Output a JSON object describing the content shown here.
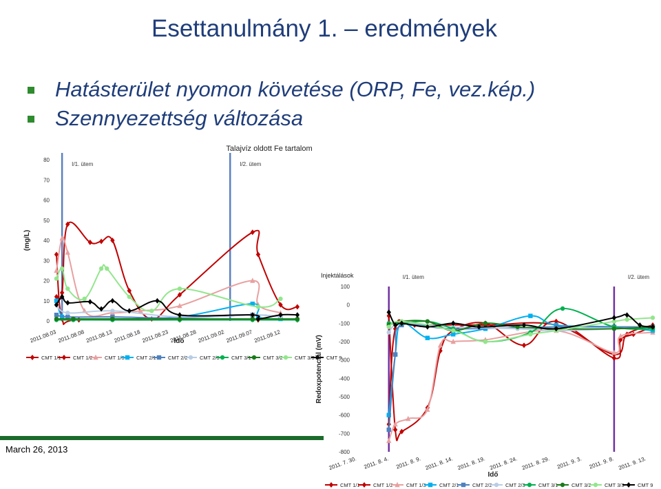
{
  "slide": {
    "title": "Esettanulmány 1. – eredmények",
    "bullets": [
      "Hatásterület nyomon követése (ORP, Fe, vez.kép.)",
      "Szennyezettség változása"
    ],
    "date": "March 26, 2013",
    "accent_color": "#1b6b2c",
    "title_color": "#1f3d7a"
  },
  "chart_data": [
    {
      "type": "line",
      "title": "Talajvíz oldott Fe tartalom",
      "xlabel": "Idő",
      "ylabel": "(mg/L)",
      "ylim": [
        0,
        80
      ],
      "yticks": [
        0,
        10,
        20,
        30,
        40,
        50,
        60,
        70,
        80
      ],
      "xlim": [
        "2011.08.03",
        "2011.09.16"
      ],
      "xticks": [
        "2011.08.03",
        "2011.08.08",
        "2011.08.13",
        "2011.08.18",
        "2011.08.23",
        "2011.08.28",
        "2011.09.02",
        "2011.09.07",
        "2011.09.12"
      ],
      "phase_labels": [
        {
          "label": "I/1. ütem",
          "x": "2011.08.04"
        },
        {
          "label": "I/2. ütem",
          "x": "2011.09.03"
        }
      ],
      "legend_position": "bottom",
      "series": [
        {
          "name": "CMT 1/1",
          "color": "#c00000",
          "marker": "diamond",
          "points": [
            [
              "2011.08.03",
              12
            ],
            [
              "2011.08.04",
              14
            ],
            [
              "2011.08.05",
              48
            ],
            [
              "2011.08.09",
              39
            ],
            [
              "2011.08.11",
              39.5
            ],
            [
              "2011.08.13",
              40
            ],
            [
              "2011.08.16",
              15
            ],
            [
              "2011.08.20",
              1
            ],
            [
              "2011.08.25",
              13
            ],
            [
              "2011.09.07",
              44
            ],
            [
              "2011.09.08",
              33
            ],
            [
              "2011.09.12",
              8
            ],
            [
              "2011.09.15",
              7
            ]
          ]
        },
        {
          "name": "CMT 1/2",
          "color": "#c00000",
          "marker": "diamond",
          "points": [
            [
              "2011.08.03",
              33
            ],
            [
              "2011.08.04",
              1
            ],
            [
              "2011.08.07",
              0.5
            ],
            [
              "2011.08.25",
              0.5
            ],
            [
              "2011.09.08",
              0.5
            ],
            [
              "2011.09.15",
              0.5
            ]
          ]
        },
        {
          "name": "CMT 1/3",
          "color": "#e8a0a0",
          "marker": "triangle",
          "points": [
            [
              "2011.08.03",
              25
            ],
            [
              "2011.08.04",
              41
            ],
            [
              "2011.08.05",
              34
            ],
            [
              "2011.08.08",
              5
            ],
            [
              "2011.08.13",
              4
            ],
            [
              "2011.08.18",
              5
            ],
            [
              "2011.08.25",
              7.5
            ],
            [
              "2011.09.07",
              20
            ],
            [
              "2011.09.08",
              8
            ],
            [
              "2011.09.12",
              4
            ]
          ]
        },
        {
          "name": "CMT 2/1",
          "color": "#00b0f0",
          "marker": "square",
          "points": [
            [
              "2011.08.03",
              10
            ],
            [
              "2011.08.04",
              2
            ],
            [
              "2011.08.06",
              1
            ],
            [
              "2011.08.13",
              1
            ],
            [
              "2011.08.25",
              2
            ],
            [
              "2011.09.07",
              8.5
            ],
            [
              "2011.09.08",
              2
            ],
            [
              "2011.09.12",
              1
            ]
          ]
        },
        {
          "name": "CMT 2/2",
          "color": "#4f81bd",
          "marker": "square",
          "points": [
            [
              "2011.08.03",
              3
            ],
            [
              "2011.08.05",
              2
            ],
            [
              "2011.08.13",
              2
            ],
            [
              "2011.08.25",
              1.5
            ],
            [
              "2011.09.07",
              3
            ],
            [
              "2011.09.12",
              2
            ]
          ]
        },
        {
          "name": "CMT 2/3",
          "color": "#b9cde5",
          "marker": "circle",
          "points": [
            [
              "2011.08.03",
              8
            ],
            [
              "2011.08.05",
              4
            ],
            [
              "2011.08.13",
              5
            ],
            [
              "2011.08.25",
              2
            ],
            [
              "2011.09.07",
              3
            ],
            [
              "2011.09.12",
              2
            ]
          ]
        },
        {
          "name": "CMT 3/1",
          "color": "#00b050",
          "marker": "circle",
          "points": [
            [
              "2011.08.03",
              0.5
            ],
            [
              "2011.08.06",
              0.5
            ],
            [
              "2011.08.13",
              0.5
            ],
            [
              "2011.08.25",
              0.5
            ],
            [
              "2011.09.07",
              0.5
            ],
            [
              "2011.09.15",
              0.5
            ]
          ]
        },
        {
          "name": "CMT 3/2",
          "color": "#1a7a1a",
          "marker": "circle",
          "points": [
            [
              "2011.08.03",
              1
            ],
            [
              "2011.08.06",
              1
            ],
            [
              "2011.08.13",
              1
            ],
            [
              "2011.08.25",
              1
            ],
            [
              "2011.09.07",
              1
            ],
            [
              "2011.09.15",
              1
            ]
          ]
        },
        {
          "name": "CMT 3/3",
          "color": "#92e68c",
          "marker": "circle",
          "points": [
            [
              "2011.08.03",
              21
            ],
            [
              "2011.08.04",
              26
            ],
            [
              "2011.08.05",
              16
            ],
            [
              "2011.08.08",
              11
            ],
            [
              "2011.08.11",
              26
            ],
            [
              "2011.08.12",
              26
            ],
            [
              "2011.08.16",
              12
            ],
            [
              "2011.08.20",
              5
            ],
            [
              "2011.08.25",
              16
            ],
            [
              "2011.09.08",
              7
            ],
            [
              "2011.09.12",
              11
            ]
          ]
        },
        {
          "name": "CMT 9",
          "color": "#000000",
          "marker": "diamond",
          "points": [
            [
              "2011.08.03",
              8
            ],
            [
              "2011.08.04",
              12
            ],
            [
              "2011.08.05",
              9
            ],
            [
              "2011.08.09",
              9.5
            ],
            [
              "2011.08.11",
              6
            ],
            [
              "2011.08.13",
              10
            ],
            [
              "2011.08.16",
              5
            ],
            [
              "2011.08.21",
              10
            ],
            [
              "2011.08.25",
              3
            ],
            [
              "2011.09.07",
              3
            ],
            [
              "2011.09.08",
              1
            ],
            [
              "2011.09.12",
              3
            ],
            [
              "2011.09.15",
              3
            ]
          ]
        }
      ]
    },
    {
      "type": "line",
      "title": "Injektálások",
      "xlabel": "Idő",
      "ylabel": "Redoxpotenciál (mV)",
      "ylim": [
        -800,
        100
      ],
      "yticks": [
        100,
        0,
        -100,
        -200,
        -300,
        -400,
        -500,
        -600,
        -700,
        -800
      ],
      "xlim": [
        "2011. 7. 30.",
        "2011. 9. 14."
      ],
      "xticks": [
        "2011. 7. 30.",
        "2011. 8. 4.",
        "2011. 8. 9.",
        "2011. 8. 14.",
        "2011. 8. 19.",
        "2011. 8. 24.",
        "2011. 8. 29.",
        "2011. 9. 3.",
        "2011. 9. 8.",
        "2011. 9. 13."
      ],
      "phase_labels": [
        {
          "label": "I/1. ütem",
          "x": "2011. 8. 4."
        },
        {
          "label": "I/2. ütem",
          "x": "2011. 9. 8."
        }
      ],
      "legend_position": "bottom",
      "series": [
        {
          "name": "CMT 1/1",
          "color": "#c00000",
          "marker": "diamond",
          "points": [
            [
              "2011. 8. 4.",
              -60
            ],
            [
              "2011. 8. 5.",
              -680
            ],
            [
              "2011. 8. 6.",
              -690
            ],
            [
              "2011. 8. 10.",
              -560
            ],
            [
              "2011. 8. 12.",
              -250
            ],
            [
              "2011. 8. 14.",
              -140
            ],
            [
              "2011. 8. 19.",
              -100
            ],
            [
              "2011. 8. 25.",
              -220
            ],
            [
              "2011. 8. 30.",
              -90
            ],
            [
              "2011. 9. 8.",
              -290
            ],
            [
              "2011. 9. 9.",
              -190
            ],
            [
              "2011. 9. 11.",
              -160
            ],
            [
              "2011. 9. 14.",
              -120
            ]
          ]
        },
        {
          "name": "CMT 1/2",
          "color": "#c00000",
          "marker": "diamond",
          "points": [
            [
              "2011. 8. 4.",
              -650
            ],
            [
              "2011. 8. 5.",
              -130
            ],
            [
              "2011. 8. 8.",
              -110
            ],
            [
              "2011. 8. 19.",
              -110
            ],
            [
              "2011. 8. 30.",
              -110
            ],
            [
              "2011. 9. 8.",
              -270
            ],
            [
              "2011. 9. 10.",
              -160
            ],
            [
              "2011. 9. 14.",
              -110
            ]
          ]
        },
        {
          "name": "CMT 1/3",
          "color": "#e8a0a0",
          "marker": "triangle",
          "points": [
            [
              "2011. 8. 4.",
              -740
            ],
            [
              "2011. 8. 5.",
              -650
            ],
            [
              "2011. 8. 7.",
              -620
            ],
            [
              "2011. 8. 10.",
              -570
            ],
            [
              "2011. 8. 12.",
              -220
            ],
            [
              "2011. 8. 14.",
              -200
            ],
            [
              "2011. 8. 19.",
              -190
            ],
            [
              "2011. 8. 30.",
              -140
            ],
            [
              "2011. 9. 8.",
              -260
            ],
            [
              "2011. 9. 9.",
              -170
            ],
            [
              "2011. 9. 14.",
              -150
            ]
          ]
        },
        {
          "name": "CMT 2/1",
          "color": "#00b0f0",
          "marker": "square",
          "points": [
            [
              "2011. 8. 4.",
              -600
            ],
            [
              "2011. 8. 5.",
              -270
            ],
            [
              "2011. 8. 6.",
              -100
            ],
            [
              "2011. 8. 10.",
              -180
            ],
            [
              "2011. 8. 14.",
              -160
            ],
            [
              "2011. 8. 19.",
              -130
            ],
            [
              "2011. 8. 26.",
              -60
            ],
            [
              "2011. 8. 30.",
              -110
            ],
            [
              "2011. 9. 8.",
              -120
            ],
            [
              "2011. 9. 14.",
              -140
            ]
          ]
        },
        {
          "name": "CMT 2/2",
          "color": "#4f81bd",
          "marker": "square",
          "points": [
            [
              "2011. 8. 4.",
              -680
            ],
            [
              "2011. 8. 5.",
              -270
            ],
            [
              "2011. 8. 6.",
              -110
            ],
            [
              "2011. 8. 14.",
              -130
            ],
            [
              "2011. 8. 30.",
              -120
            ],
            [
              "2011. 9. 8.",
              -120
            ],
            [
              "2011. 9. 14.",
              -120
            ]
          ]
        },
        {
          "name": "CMT 2/3",
          "color": "#b9cde5",
          "marker": "circle",
          "points": [
            [
              "2011. 8. 4.",
              -150
            ],
            [
              "2011. 8. 6.",
              -100
            ],
            [
              "2011. 8. 14.",
              -120
            ],
            [
              "2011. 8. 24.",
              -130
            ],
            [
              "2011. 8. 30.",
              -140
            ],
            [
              "2011. 9. 8.",
              -130
            ],
            [
              "2011. 9. 14.",
              -120
            ]
          ]
        },
        {
          "name": "CMT 3/1",
          "color": "#00b050",
          "marker": "circle",
          "points": [
            [
              "2011. 8. 4.",
              -100
            ],
            [
              "2011. 8. 6.",
              -100
            ],
            [
              "2011. 8. 10.",
              -90
            ],
            [
              "2011. 8. 14.",
              -130
            ],
            [
              "2011. 8. 19.",
              -200
            ],
            [
              "2011. 8. 26.",
              -150
            ],
            [
              "2011. 8. 31.",
              -20
            ],
            [
              "2011. 9. 8.",
              -120
            ],
            [
              "2011. 9. 14.",
              -130
            ]
          ]
        },
        {
          "name": "CMT 3/2",
          "color": "#1a7a1a",
          "marker": "circle",
          "points": [
            [
              "2011. 8. 4.",
              -110
            ],
            [
              "2011. 8. 6.",
              -90
            ],
            [
              "2011. 8. 10.",
              -90
            ],
            [
              "2011. 8. 14.",
              -140
            ],
            [
              "2011. 8. 19.",
              -100
            ],
            [
              "2011. 8. 24.",
              -120
            ],
            [
              "2011. 8. 30.",
              -130
            ],
            [
              "2011. 9. 8.",
              -130
            ],
            [
              "2011. 9. 14.",
              -120
            ]
          ]
        },
        {
          "name": "CMT 3/3",
          "color": "#92e68c",
          "marker": "circle",
          "points": [
            [
              "2011. 8. 4.",
              -120
            ],
            [
              "2011. 8. 6.",
              -90
            ],
            [
              "2011. 8. 14.",
              -140
            ],
            [
              "2011. 8. 19.",
              -200
            ],
            [
              "2011. 8. 26.",
              -160
            ],
            [
              "2011. 8. 30.",
              -140
            ],
            [
              "2011. 9. 8.",
              -90
            ],
            [
              "2011. 9. 10.",
              -80
            ],
            [
              "2011. 9. 14.",
              -70
            ]
          ]
        },
        {
          "name": "CMT 9",
          "color": "#000000",
          "marker": "diamond",
          "points": [
            [
              "2011. 8. 4.",
              -40
            ],
            [
              "2011. 8. 5.",
              -110
            ],
            [
              "2011. 8. 6.",
              -100
            ],
            [
              "2011. 8. 10.",
              -120
            ],
            [
              "2011. 8. 14.",
              -100
            ],
            [
              "2011. 8. 18.",
              -120
            ],
            [
              "2011. 8. 25.",
              -110
            ],
            [
              "2011. 8. 30.",
              -130
            ],
            [
              "2011. 9. 8.",
              -70
            ],
            [
              "2011. 9. 10.",
              -55
            ],
            [
              "2011. 9. 12.",
              -110
            ],
            [
              "2011. 9. 14.",
              -120
            ]
          ]
        }
      ]
    }
  ]
}
